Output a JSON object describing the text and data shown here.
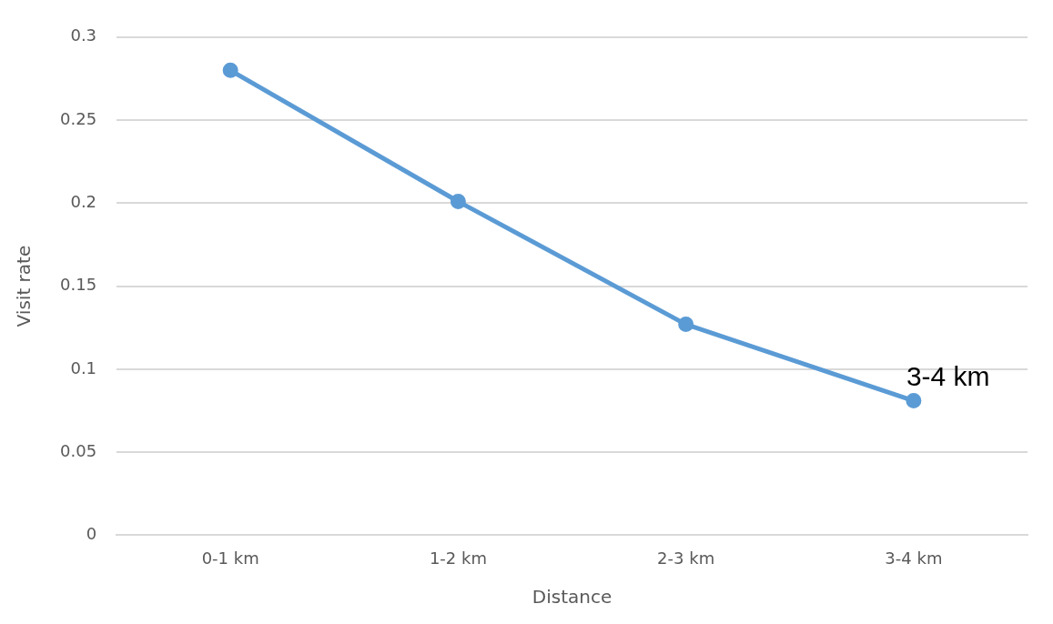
{
  "chart_data": {
    "type": "line",
    "xlabel": "Distance",
    "ylabel": "Visit rate",
    "categories": [
      "0-1 km",
      "1-2 km",
      "2-3 km",
      "3-4 km"
    ],
    "series": [
      {
        "color": "#5b9bd5",
        "values": [
          0.28,
          0.201,
          0.127,
          0.081
        ]
      }
    ],
    "ylim": [
      0,
      0.3
    ],
    "yticks": [
      0,
      0.05,
      0.1,
      0.15,
      0.2,
      0.25,
      0.3
    ],
    "grid": "y",
    "legend": false,
    "marker": "circle",
    "line_style": "solid",
    "annotations": [
      {
        "text": "3-4 km",
        "x": "3-4 km",
        "y": 0.081
      }
    ]
  }
}
